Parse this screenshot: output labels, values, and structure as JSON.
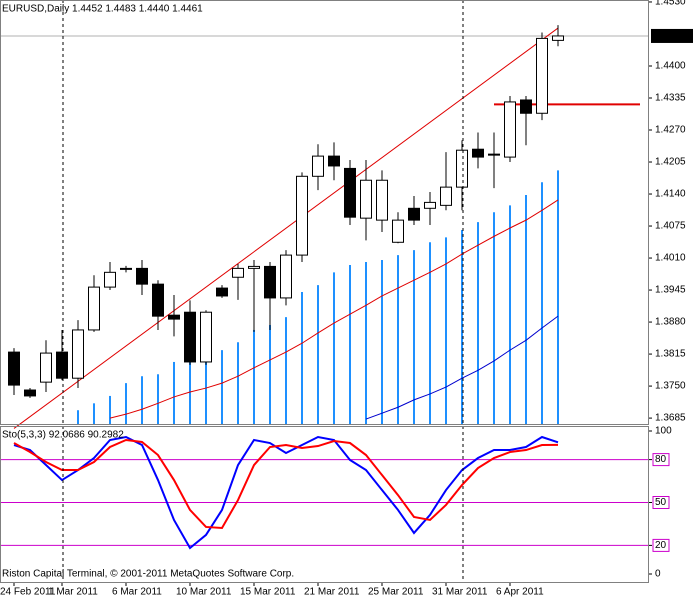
{
  "chart_data": [
    {
      "type": "candlestick",
      "title": "EURUSD,Daily  1.4452 1.4483 1.4440 1.4461",
      "footer": "Riston Capital Terminal, © 2001-2011 MetaQuotes Software Corp.",
      "categories": [
        "24 Feb 2011",
        null,
        null,
        "1 Mar 2011",
        null,
        null,
        null,
        "6 Mar 2011",
        null,
        null,
        null,
        "10 Mar 2011",
        null,
        null,
        null,
        "15 Mar 2011",
        null,
        null,
        null,
        "21 Mar 2011",
        null,
        null,
        null,
        "25 Mar 2011",
        null,
        null,
        null,
        "31 Mar 2011",
        null,
        null,
        null,
        "6 Apr 2011",
        null,
        null,
        null
      ],
      "open": [
        1.3819,
        1.3742,
        1.3758,
        1.3819,
        1.3766,
        1.3864,
        1.3951,
        1.3989,
        1.3989,
        1.3957,
        1.3894,
        1.39,
        1.3799,
        1.3949,
        1.3971,
        1.3989,
        1.3993,
        1.3929,
        1.4016,
        1.4176,
        1.4217,
        1.4192,
        1.4091,
        1.4087,
        1.4042,
        1.4111,
        1.4111,
        1.4117,
        1.4154,
        1.4231,
        1.4221,
        1.4215,
        1.4331,
        1.4304,
        1.4452
      ],
      "high": [
        1.3827,
        1.3746,
        1.3843,
        1.3864,
        1.3884,
        1.3975,
        1.4002,
        1.3994,
        1.4006,
        1.3965,
        1.3935,
        1.3924,
        1.3904,
        1.3955,
        1.3998,
        1.4006,
        1.4002,
        1.4026,
        1.4184,
        1.4241,
        1.4245,
        1.4209,
        1.4209,
        1.4188,
        1.4103,
        1.4136,
        1.4144,
        1.4225,
        1.4249,
        1.4265,
        1.4265,
        1.4339,
        1.4339,
        1.4468,
        1.4483
      ],
      "low": [
        1.3732,
        1.3726,
        1.3738,
        1.3762,
        1.3746,
        1.386,
        1.3945,
        1.3981,
        1.3935,
        1.3864,
        1.3851,
        1.3793,
        1.3793,
        1.3929,
        1.3925,
        1.386,
        1.3864,
        1.3914,
        1.4002,
        1.4148,
        1.4168,
        1.4077,
        1.4046,
        1.4063,
        1.404,
        1.4077,
        1.4077,
        1.4107,
        1.4107,
        1.4192,
        1.4152,
        1.4205,
        1.4239,
        1.429,
        1.444
      ],
      "close": [
        1.3752,
        1.373,
        1.3817,
        1.3766,
        1.3864,
        1.3951,
        1.3981,
        1.3987,
        1.3957,
        1.3892,
        1.3886,
        1.3799,
        1.39,
        1.3933,
        1.3989,
        1.3993,
        1.3929,
        1.4016,
        1.4176,
        1.4217,
        1.4197,
        1.4093,
        1.4168,
        1.4168,
        1.4087,
        1.4087,
        1.4123,
        1.4154,
        1.4229,
        1.4215,
        1.4221,
        1.4327,
        1.4304,
        1.4456,
        1.4461
      ],
      "up_color": "#ffffff",
      "down_color": "#000000",
      "ylim": [
        1.3673,
        1.4534
      ],
      "yticks": [
        1.3685,
        {
          "value": 1.375,
          "label": "1.3750"
        },
        1.3815,
        {
          "value": 1.388,
          "label": "1.3880"
        },
        1.3945,
        {
          "value": 1.401,
          "label": "1.4010"
        },
        1.4075,
        {
          "value": 1.414,
          "label": "1.4140"
        },
        1.4205,
        {
          "value": 1.427,
          "label": "1.4270"
        },
        1.4335,
        {
          "value": 1.44,
          "label": "1.4400"
        },
        {
          "value": 1.453,
          "label": "1.4530"
        }
      ],
      "last_price": 1.4461,
      "overlays": [
        {
          "type": "histogram",
          "color": "#1e90ff",
          "values": [
            null,
            null,
            null,
            null,
            1.3701,
            1.3715,
            1.373,
            1.3756,
            1.377,
            1.3774,
            1.3799,
            1.3811,
            1.3819,
            1.3823,
            1.3839,
            1.3864,
            1.3874,
            1.389,
            1.3941,
            1.3955,
            1.3981,
            1.3996,
            1.4002,
            1.4006,
            1.4016,
            1.4026,
            1.4042,
            1.4052,
            1.4067,
            1.4083,
            1.4103,
            1.4117,
            1.4138,
            1.4164,
            1.4188
          ]
        },
        {
          "type": "line",
          "color": "#e00000",
          "values": [
            null,
            null,
            null,
            null,
            null,
            null,
            1.3685,
            1.3693,
            1.3703,
            1.3715,
            1.3728,
            1.3738,
            1.3746,
            1.3756,
            1.377,
            1.3787,
            1.3803,
            1.3819,
            1.3837,
            1.3858,
            1.3878,
            1.3896,
            1.3914,
            1.3933,
            1.3949,
            1.3965,
            1.3981,
            1.3998,
            1.4018,
            1.4036,
            1.4054,
            1.4071,
            1.4087,
            1.4107,
            1.4128
          ]
        },
        {
          "type": "line",
          "color": "#0000cd",
          "values": [
            null,
            null,
            null,
            null,
            null,
            null,
            null,
            null,
            null,
            null,
            null,
            null,
            null,
            null,
            null,
            null,
            null,
            null,
            null,
            null,
            null,
            null,
            1.3683,
            1.3695,
            1.3707,
            1.3722,
            1.3734,
            1.3748,
            1.3766,
            1.3782,
            1.3801,
            1.3823,
            1.3843,
            1.3868,
            1.3892
          ]
        }
      ],
      "trendline": {
        "color": "#e00000",
        "start": [
          0,
          1.3664
        ],
        "end": [
          34,
          1.4477
        ]
      },
      "hline": {
        "color": "#e00000",
        "value": 1.4322,
        "start": 30
      }
    },
    {
      "type": "line",
      "title": "Sto(5,3,3) 92.0686 90.2982",
      "series": [
        {
          "color": "#0000ff",
          "values": [
            90.2,
            86.7,
            76.2,
            65.7,
            72.7,
            81.1,
            93.7,
            95.8,
            90.2,
            65.7,
            37.8,
            18.2,
            27.3,
            44.8,
            76.2,
            93.7,
            91.6,
            84.6,
            90.2,
            95.8,
            93.7,
            79.7,
            72.7,
            58.7,
            44.8,
            28.7,
            41.3,
            58.7,
            72.7,
            81.1,
            86.7,
            86.7,
            88.8,
            95.8,
            92.0686
          ]
        },
        {
          "color": "#ff0000",
          "values": [
            91.6,
            85.3,
            78.3,
            72.7,
            72.7,
            78.3,
            88.8,
            93.7,
            92.3,
            83.2,
            65.7,
            44.8,
            32.9,
            32.2,
            51.7,
            76.2,
            88.8,
            90.2,
            88.1,
            89.5,
            93.0,
            91.6,
            83.2,
            69.2,
            55.2,
            39.9,
            37.8,
            48.3,
            62.2,
            74.1,
            81.1,
            85.3,
            86.7,
            90.2,
            90.2982
          ]
        }
      ],
      "ylim": [
        -5.6,
        103.5
      ],
      "yticks": [
        0,
        20,
        50,
        80,
        100
      ],
      "levels": [
        20,
        50,
        80
      ],
      "level_color": "#cc00cc"
    }
  ]
}
